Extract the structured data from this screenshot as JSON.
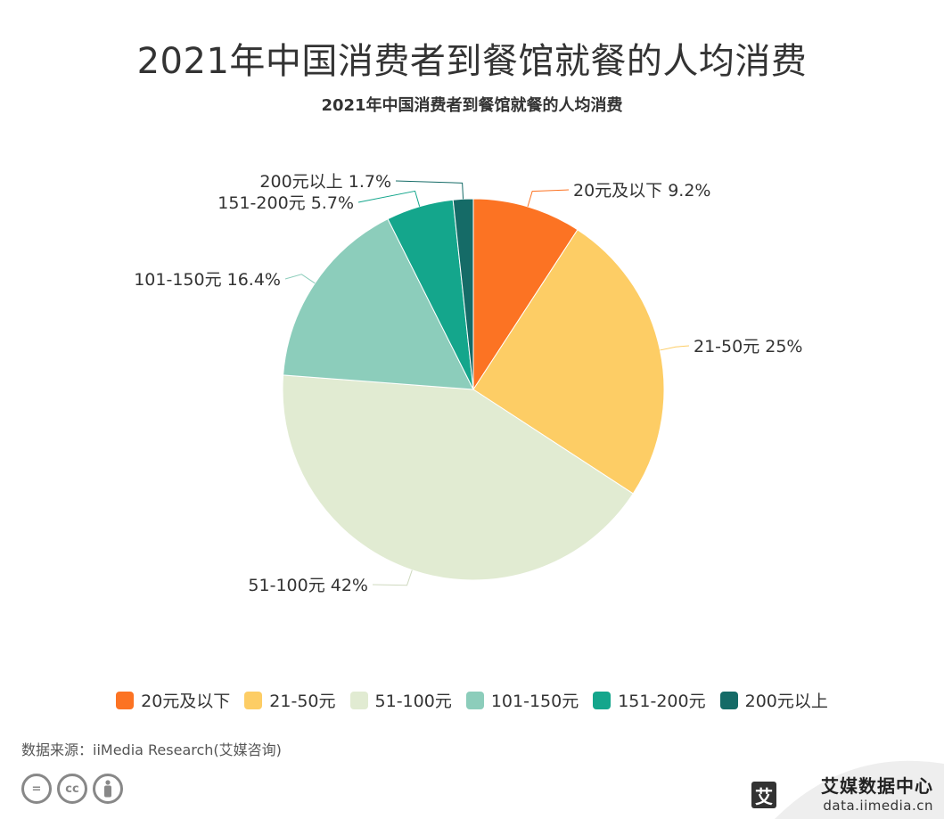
{
  "header": {
    "title": "2021年中国消费者到餐馆就餐的人均消费",
    "subtitle": "2021年中国消费者到餐馆就餐的人均消费"
  },
  "chart_data": {
    "type": "pie",
    "title": "2021年中国消费者到餐馆就餐的人均消费",
    "unit": "%",
    "legend_position": "bottom",
    "slices": [
      {
        "name": "20元及以下",
        "value": 9.2,
        "label": "20元及以下 9.2%",
        "color": "#FC7323"
      },
      {
        "name": "21-50元",
        "value": 25,
        "label": "21-50元 25%",
        "color": "#FDCD65"
      },
      {
        "name": "51-100元",
        "value": 42,
        "label": "51-100元 42%",
        "color": "#E1EBD2"
      },
      {
        "name": "101-150元",
        "value": 16.4,
        "label": "101-150元 16.4%",
        "color": "#8CCDBB"
      },
      {
        "name": "151-200元",
        "value": 5.7,
        "label": "151-200元 5.7%",
        "color": "#14A68C"
      },
      {
        "name": "200元以上",
        "value": 1.7,
        "label": "200元以上 1.7%",
        "color": "#156B67"
      }
    ]
  },
  "legend": {
    "items": [
      {
        "label": "20元及以下",
        "color": "#FC7323"
      },
      {
        "label": "21-50元",
        "color": "#FDCD65"
      },
      {
        "label": "51-100元",
        "color": "#E1EBD2"
      },
      {
        "label": "101-150元",
        "color": "#8CCDBB"
      },
      {
        "label": "151-200元",
        "color": "#14A68C"
      },
      {
        "label": "200元以上",
        "color": "#156B67"
      }
    ]
  },
  "footer": {
    "source": "数据来源：iiMedia Research(艾媒咨询)",
    "cc_icons": [
      "equal-icon",
      "cc-icon",
      "person-icon"
    ],
    "brand_logo": "艾",
    "brand_name": "艾媒数据中心",
    "brand_url": "data.iimedia.cn"
  }
}
